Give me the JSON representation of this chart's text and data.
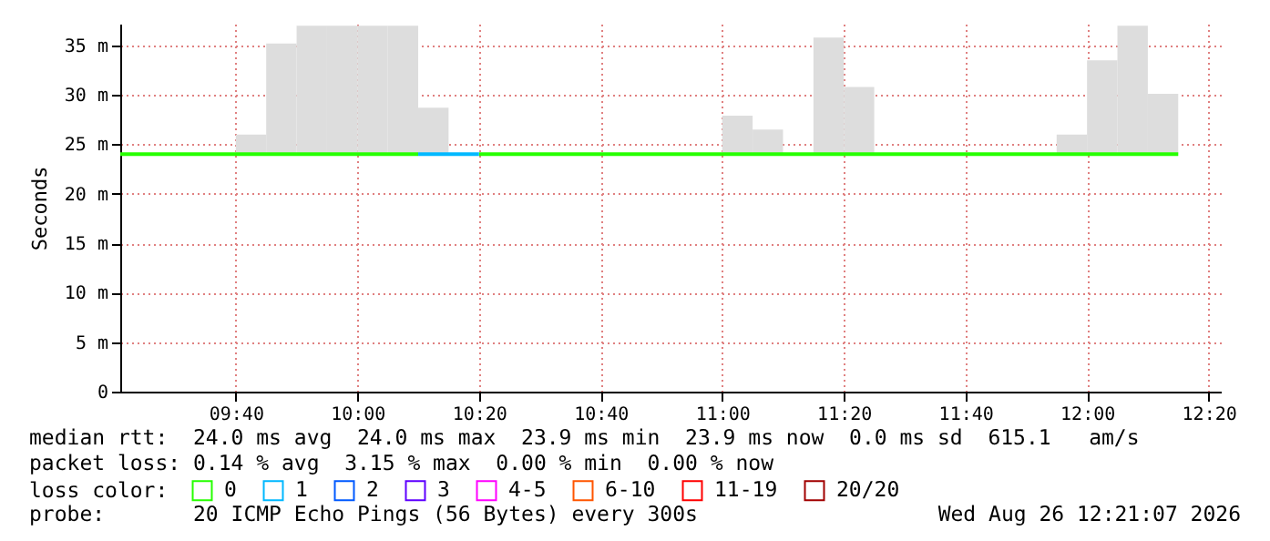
{
  "chart_data": {
    "type": "line",
    "ylabel": "Seconds",
    "legend_title": "loss color:",
    "legend": "bottom",
    "grid": true,
    "xlim": [
      "2026-08-26T09:21",
      "2026-08-26T12:22"
    ],
    "xticks": [
      {
        "value": "2026-08-26T09:40",
        "label": "09:40"
      },
      {
        "value": "2026-08-26T10:00",
        "label": "10:00"
      },
      {
        "value": "2026-08-26T10:20",
        "label": "10:20"
      },
      {
        "value": "2026-08-26T10:40",
        "label": "10:40"
      },
      {
        "value": "2026-08-26T11:00",
        "label": "11:00"
      },
      {
        "value": "2026-08-26T11:20",
        "label": "11:20"
      },
      {
        "value": "2026-08-26T11:40",
        "label": "11:40"
      },
      {
        "value": "2026-08-26T12:00",
        "label": "12:00"
      },
      {
        "value": "2026-08-26T12:20",
        "label": "12:20"
      }
    ],
    "ylim": [
      0,
      37.2
    ],
    "yticks": [
      0,
      {
        "value": 5,
        "label": "5 m"
      },
      {
        "value": 10,
        "label": "10 m"
      },
      {
        "value": 15,
        "label": "15 m"
      },
      {
        "value": 20,
        "label": "20 m"
      },
      {
        "value": 25,
        "label": "25 m"
      },
      {
        "value": 30,
        "label": "30 m"
      },
      {
        "value": 35,
        "label": "35 m"
      }
    ],
    "series": [
      {
        "type": "bar",
        "color": "#dddddd",
        "x": [
          "2026-08-26T09:42:30",
          "2026-08-26T09:47:30",
          "2026-08-26T09:52:30",
          "2026-08-26T09:57:30",
          "2026-08-26T10:02:30",
          "2026-08-26T10:07:30",
          "2026-08-26T10:12:30",
          "2026-08-26T11:02:30",
          "2026-08-26T11:07:30",
          "2026-08-26T11:17:30",
          "2026-08-26T11:22:30",
          "2026-08-26T11:57:30",
          "2026-08-26T12:02:30",
          "2026-08-26T12:07:30",
          "2026-08-26T12:12:30"
        ],
        "base": [
          24,
          24,
          24,
          24,
          24,
          24,
          24,
          24,
          24,
          24,
          24,
          24,
          24,
          24,
          24
        ],
        "values": [
          2.0,
          11.2,
          13,
          13,
          13,
          13,
          4.7,
          3.9,
          2.5,
          11.8,
          6.8,
          2.0,
          9.5,
          13,
          6.1
        ]
      },
      {
        "name": "0",
        "color": "#26ff00",
        "x": [
          "2026-08-26T09:21",
          "2026-08-26T10:10",
          "2026-08-26T10:15",
          "2026-08-26T10:20",
          "2026-08-26T12:15"
        ],
        "values": [
          24,
          24,
          null,
          24,
          24
        ]
      },
      {
        "name": "1",
        "color": "#00b8ff",
        "x": [
          "2026-08-26T10:10",
          "2026-08-26T10:20"
        ],
        "values": [
          24,
          24
        ]
      },
      {
        "name": "2",
        "color": "#0059ff"
      },
      {
        "name": "3",
        "color": "#5e00ff"
      },
      {
        "name": "4-5",
        "color": "#ff00ff"
      },
      {
        "name": "6-10",
        "color": "#ff5500"
      },
      {
        "name": "11-19",
        "color": "#ff0000"
      },
      {
        "name": "20/20",
        "color": "#a10000"
      }
    ],
    "annotations": [
      "median rtt:  24.0 ms avg  24.0 ms max  23.9 ms min  23.9 ms now  0.0 ms sd  615.1   am/s",
      "packet loss: 0.14 % avg  3.15 % max  0.00 % min  0.00 % now",
      "probe:       20 ICMP Echo Pings (56 Bytes) every 300s",
      "Wed Aug 26 12:21:07 2026"
    ]
  }
}
